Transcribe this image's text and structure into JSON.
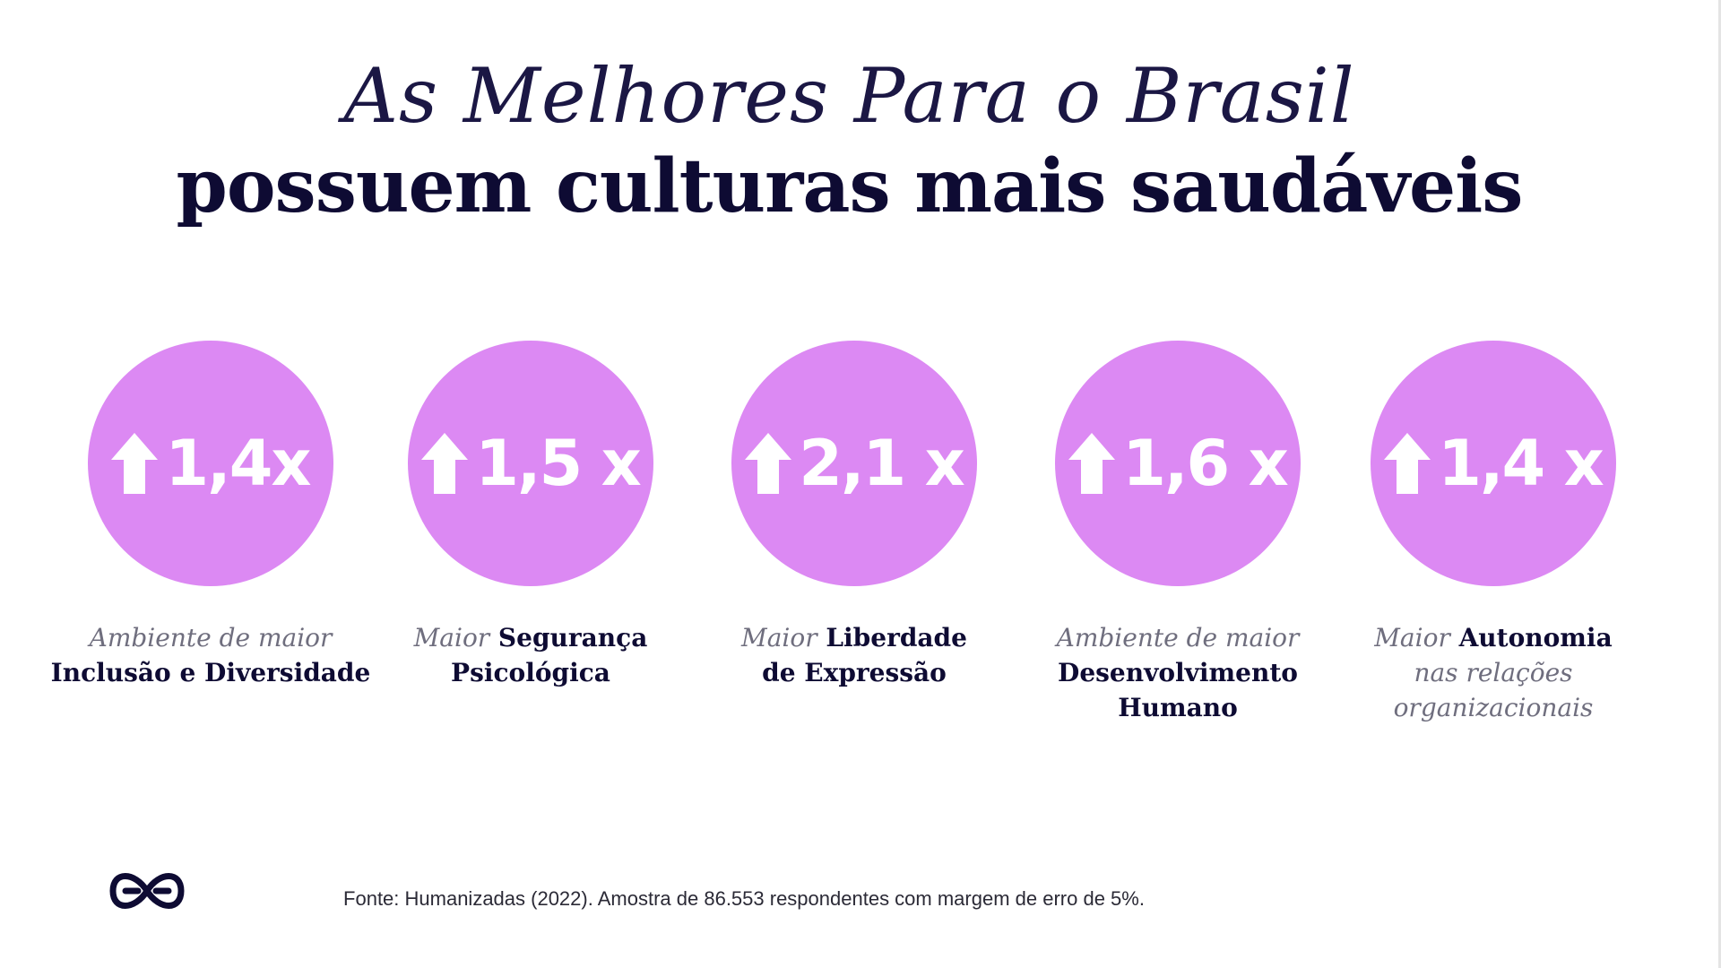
{
  "title": {
    "line1": "As Melhores Para o Brasil",
    "line2": "possuem culturas mais saudáveis"
  },
  "colors": {
    "circle": "#dc89f3",
    "title": "#0e0b33",
    "caption_light": "#6f6e7e"
  },
  "stats": [
    {
      "value": "1,4x",
      "icon": "arrow-up-icon",
      "caption_lines": [
        [
          {
            "text": "Ambiente de maior",
            "style": "light"
          }
        ],
        [
          {
            "text": "Inclusão e Diversidade",
            "style": "bold"
          }
        ]
      ]
    },
    {
      "value": "1,5 x",
      "icon": "arrow-up-icon",
      "caption_lines": [
        [
          {
            "text": "Maior",
            "style": "light"
          },
          {
            "text": " Segurança",
            "style": "bold"
          }
        ],
        [
          {
            "text": "Psicológica",
            "style": "bold"
          }
        ]
      ]
    },
    {
      "value": "2,1 x",
      "icon": "arrow-up-icon",
      "caption_lines": [
        [
          {
            "text": "Maior",
            "style": "light"
          },
          {
            "text": " Liberdade",
            "style": "bold"
          }
        ],
        [
          {
            "text": "de Expressão",
            "style": "bold"
          }
        ]
      ]
    },
    {
      "value": "1,6 x",
      "icon": "arrow-up-icon",
      "caption_lines": [
        [
          {
            "text": "Ambiente de maior",
            "style": "light"
          }
        ],
        [
          {
            "text": "Desenvolvimento",
            "style": "bold"
          }
        ],
        [
          {
            "text": "Humano",
            "style": "bold"
          }
        ]
      ]
    },
    {
      "value": "1,4 x",
      "icon": "arrow-up-icon",
      "caption_lines": [
        [
          {
            "text": "Maior",
            "style": "light"
          },
          {
            "text": " Autonomia",
            "style": "bold"
          }
        ],
        [
          {
            "text": "nas relações",
            "style": "light"
          }
        ],
        [
          {
            "text": "organizacionais",
            "style": "light"
          }
        ]
      ]
    }
  ],
  "footer": {
    "source": "Fonte: Humanizadas (2022). Amostra de 86.553 respondentes com margem de erro de 5%."
  },
  "logo": {
    "icon": "humanizadas-logo-icon"
  }
}
